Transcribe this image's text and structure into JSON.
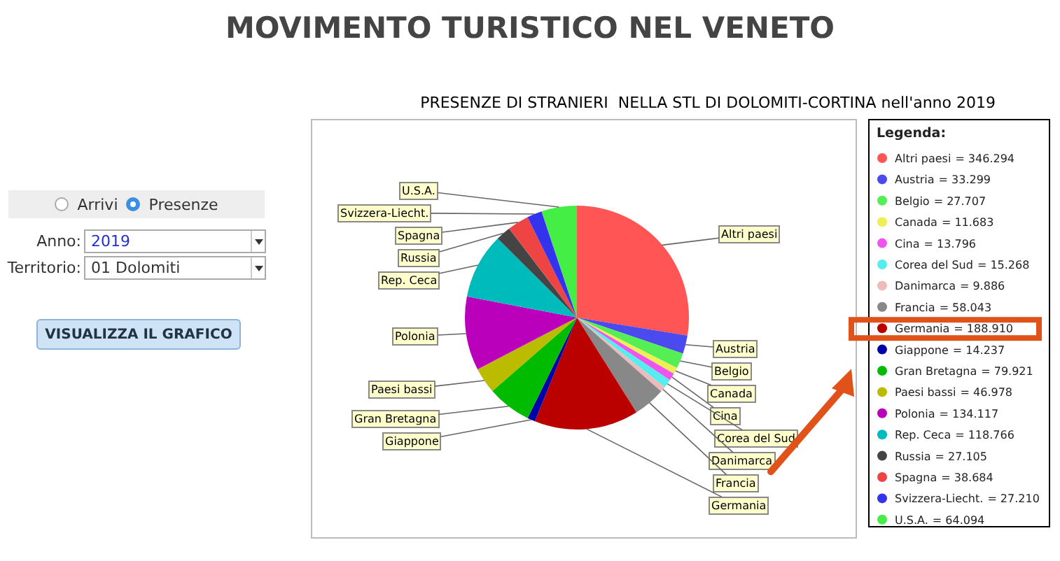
{
  "chart_data": [
    {
      "type": "other",
      "annotations": [
        "Arrivi",
        "Presenze",
        "Anno:",
        "2019",
        "Territorio:",
        "01 Dolomiti",
        "VISUALIZZA IL GRAFICO"
      ]
    },
    {
      "type": "pie",
      "title": "MOVIMENTO TURISTICO NEL VENETO",
      "subtitle": "PRESENZE DI STRANIERI  NELLA STL DI DOLOMITI-CORTINA nell'anno 2019",
      "legend_title": "Legenda:",
      "legend": "right",
      "categories": [
        "Altri paesi",
        "Austria",
        "Belgio",
        "Canada",
        "Cina",
        "Corea del Sud",
        "Danimarca",
        "Francia",
        "Germania",
        "Giappone",
        "Gran Bretagna",
        "Paesi bassi",
        "Polonia",
        "Rep. Ceca",
        "Russia",
        "Spagna",
        "Svizzera-Liecht.",
        "U.S.A."
      ],
      "values": [
        346294,
        33299,
        27707,
        11683,
        13796,
        15268,
        9886,
        58043,
        188910,
        14237,
        79921,
        46978,
        134117,
        118766,
        27105,
        38684,
        27210,
        64094
      ],
      "value_labels": [
        "= 346.294",
        "= 33.299",
        "= 27.707",
        "= 11.683",
        "= 13.796",
        "= 15.268",
        "= 9.886",
        "= 58.043",
        "= 188.910",
        "= 14.237",
        "= 79.921",
        "= 46.978",
        "= 134.117",
        "= 118.766",
        "= 27.105",
        "= 38.684",
        "= 27.210",
        "= 64.094"
      ],
      "colors": [
        "#ff5555",
        "#4a4aee",
        "#55ee55",
        "#eeee55",
        "#ee55ee",
        "#55eeee",
        "#eebbbb",
        "#888888",
        "#bb0000",
        "#0000aa",
        "#00bb00",
        "#bbbb00",
        "#bb00bb",
        "#00bbbb",
        "#444444",
        "#ee4444",
        "#3333ee",
        "#44ee44"
      ]
    }
  ]
}
